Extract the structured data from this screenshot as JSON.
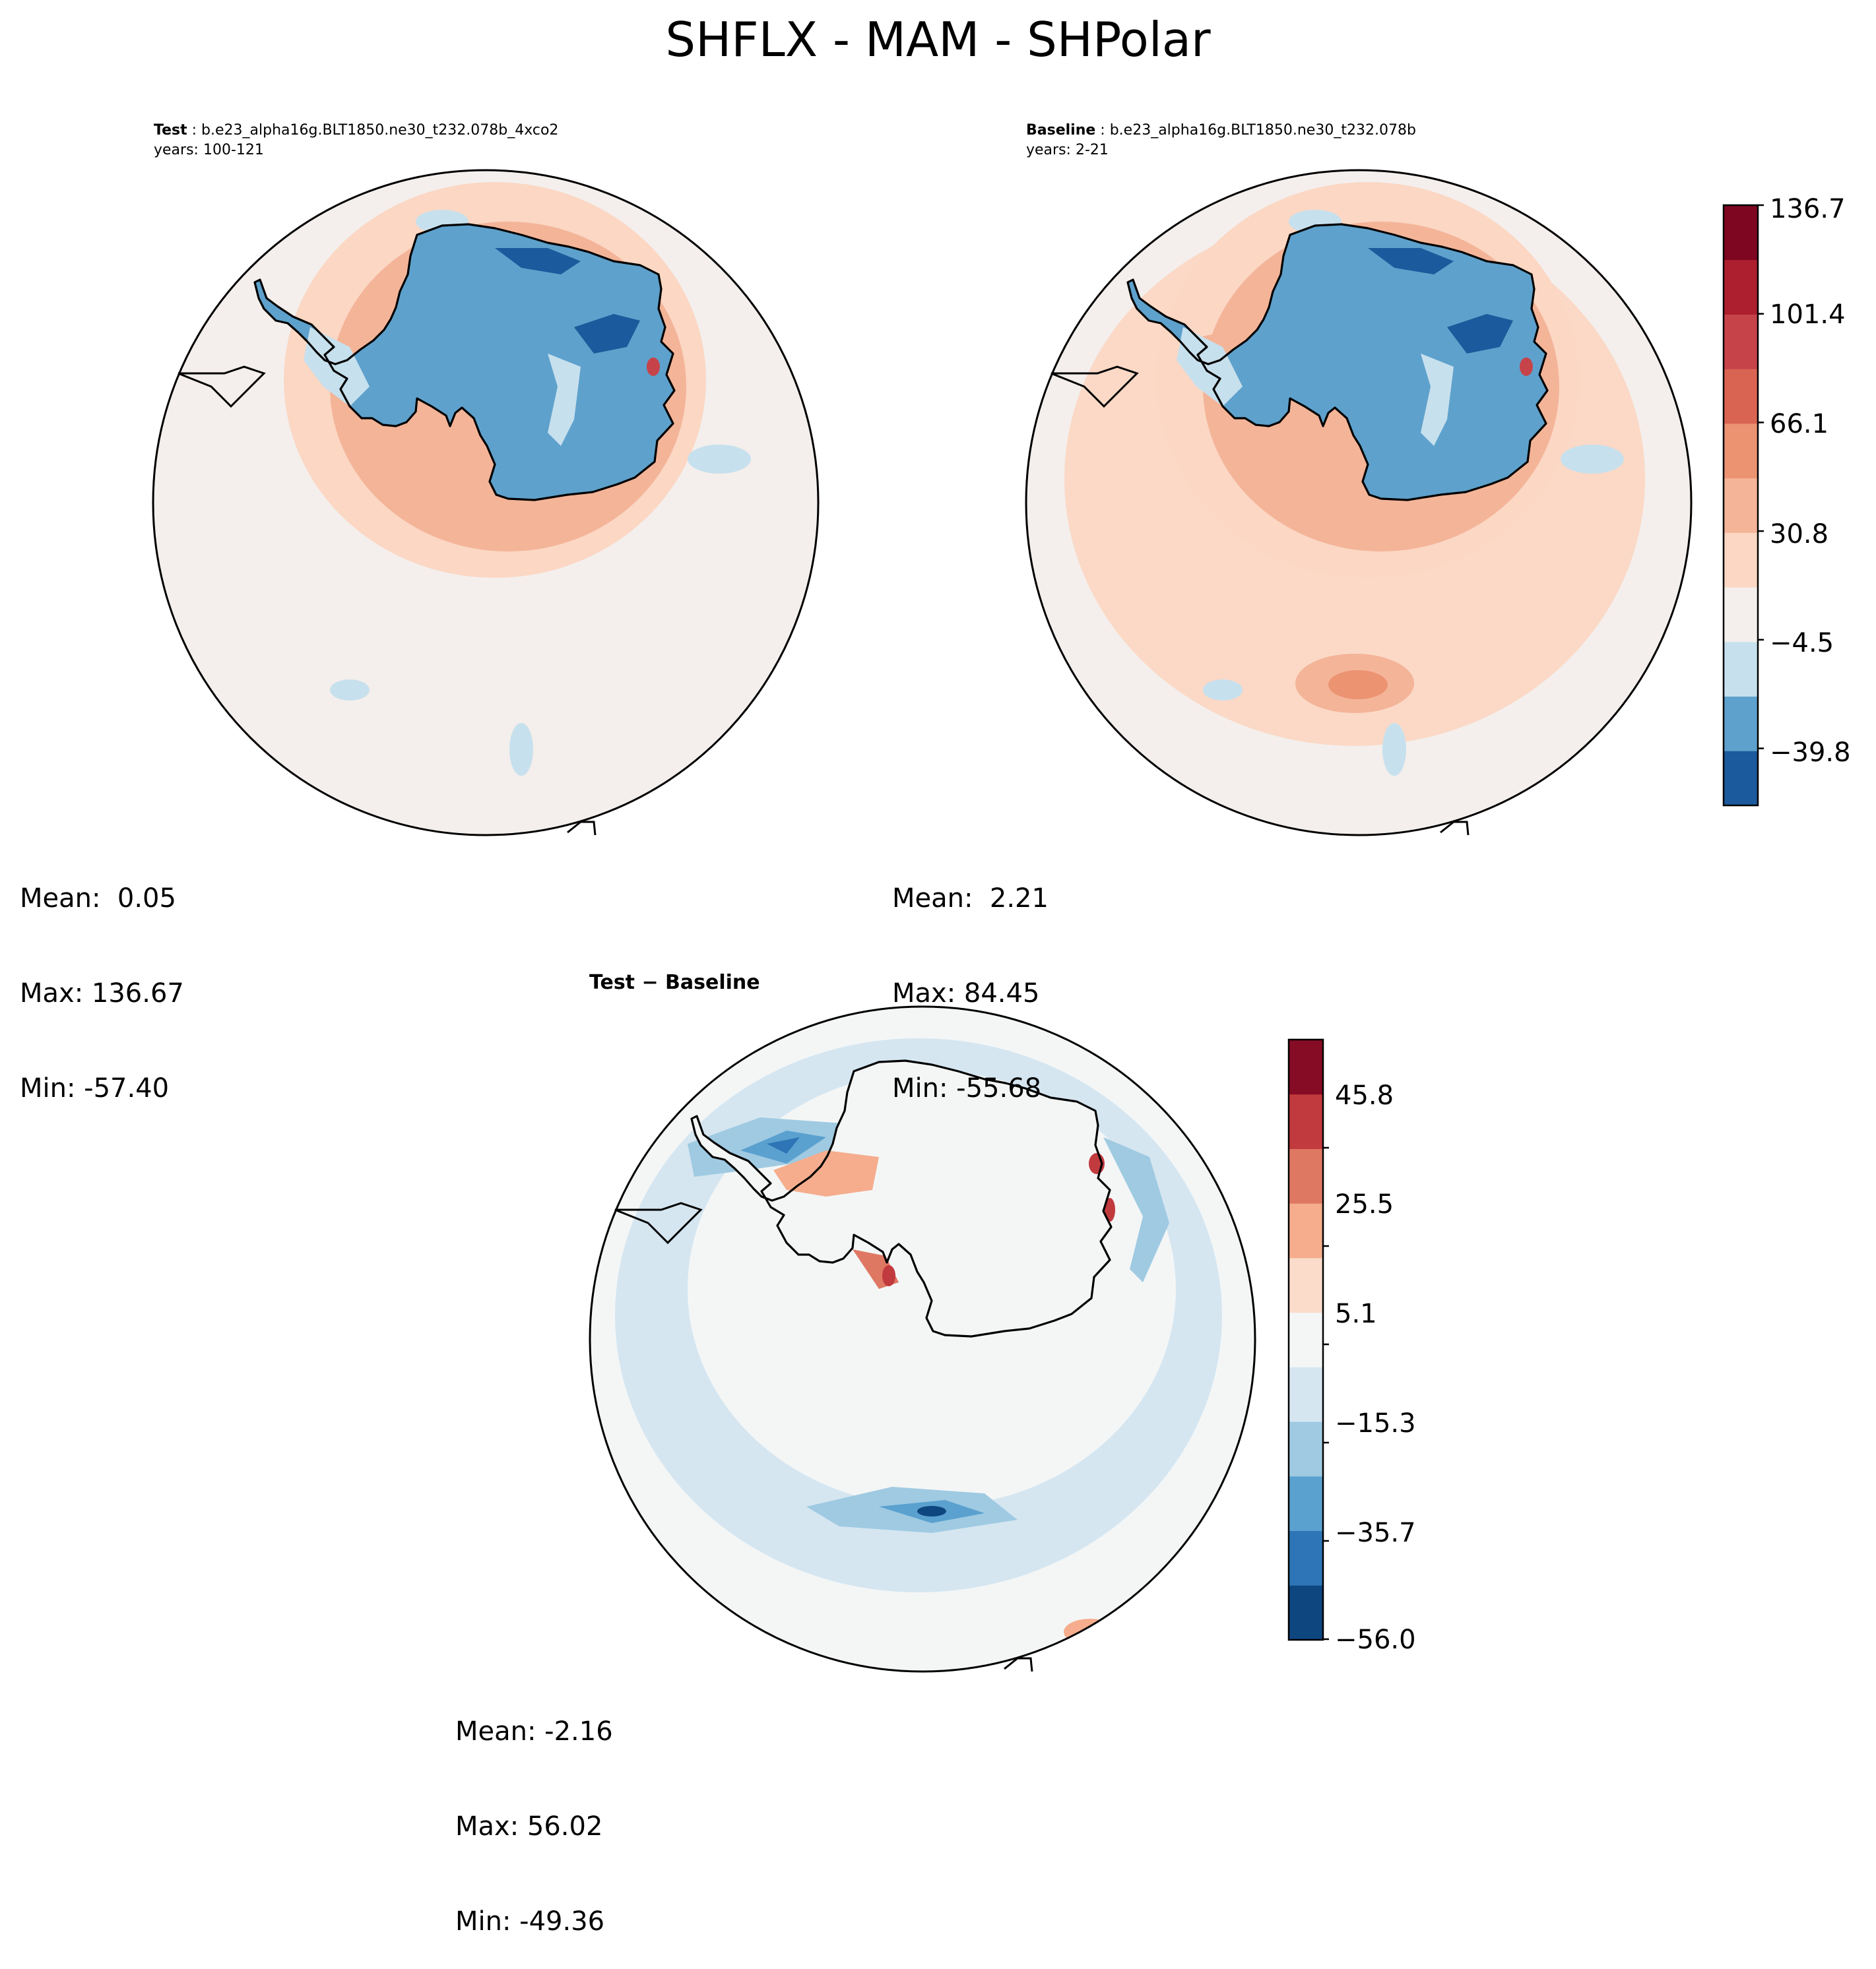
{
  "chart_data": {
    "type": "heatmap",
    "title": "SHFLX - MAM - SHPolar",
    "projection": "south-polar-stereographic",
    "panels": [
      {
        "id": "test",
        "label_bold": "Test",
        "label_case": "b.e23_alpha16g.BLT1850.ne30_t232.078b_4xco2",
        "years": "years: 100-121",
        "stats": {
          "mean": "Mean:  0.05",
          "max": "Max: 136.67",
          "min": "Min: -57.40"
        }
      },
      {
        "id": "baseline",
        "label_bold": "Baseline",
        "label_case": "b.e23_alpha16g.BLT1850.ne30_t232.078b",
        "years": "years: 2-21",
        "stats": {
          "mean": "Mean:  2.21",
          "max": "Max: 84.45",
          "min": "Min: -55.68"
        }
      },
      {
        "id": "diff",
        "label": "Test − Baseline",
        "stats": {
          "mean": "Mean: -2.16",
          "max": "Max: 56.02",
          "min": "Min: -49.36"
        }
      }
    ],
    "colorbars": [
      {
        "id": "main",
        "range": [
          -57.4,
          136.7
        ],
        "ticks": [
          "136.7",
          "101.4",
          "66.1",
          "30.8",
          "−4.5",
          "−39.8"
        ],
        "colors": [
          "#1b5a9c",
          "#5ea1cc",
          "#c7e0ed",
          "#f4efec",
          "#fbd7c4",
          "#f4b498",
          "#ec9372",
          "#d96452",
          "#c6434a",
          "#ad1f2f",
          "#7e0621"
        ]
      },
      {
        "id": "diff",
        "range": [
          -56.0,
          56.0
        ],
        "ticks": [
          "45.8",
          "25.5",
          "5.1",
          "−15.3",
          "−35.7",
          "−56.0"
        ],
        "colors": [
          "#0e4680",
          "#2d75b6",
          "#5aa1cf",
          "#9fcae2",
          "#d5e6f1",
          "#f4f6f6",
          "#fbdccb",
          "#f5ad8d",
          "#df7863",
          "#c13a3e",
          "#860b25"
        ]
      }
    ],
    "palette": {
      "ice_deep": "#1b5a9c",
      "ice": "#5ea1cc",
      "ice_light": "#c7e0ed",
      "ocean_neutral": "#f4efec",
      "warm1": "#fbd7c4",
      "warm2": "#f4b498",
      "warm3": "#ec9372",
      "warm4": "#d96452",
      "warm5": "#c6434a",
      "diff_neutral": "#f4f6f6",
      "diff_cool1": "#d5e6f1",
      "diff_cool2": "#9fcae2",
      "diff_cool3": "#5aa1cf",
      "diff_cool4": "#2d75b6",
      "diff_cool5": "#0e4680",
      "diff_warm1": "#fbdccb",
      "diff_warm2": "#f5ad8d",
      "diff_warm3": "#df7863",
      "diff_warm4": "#c13a3e"
    }
  }
}
